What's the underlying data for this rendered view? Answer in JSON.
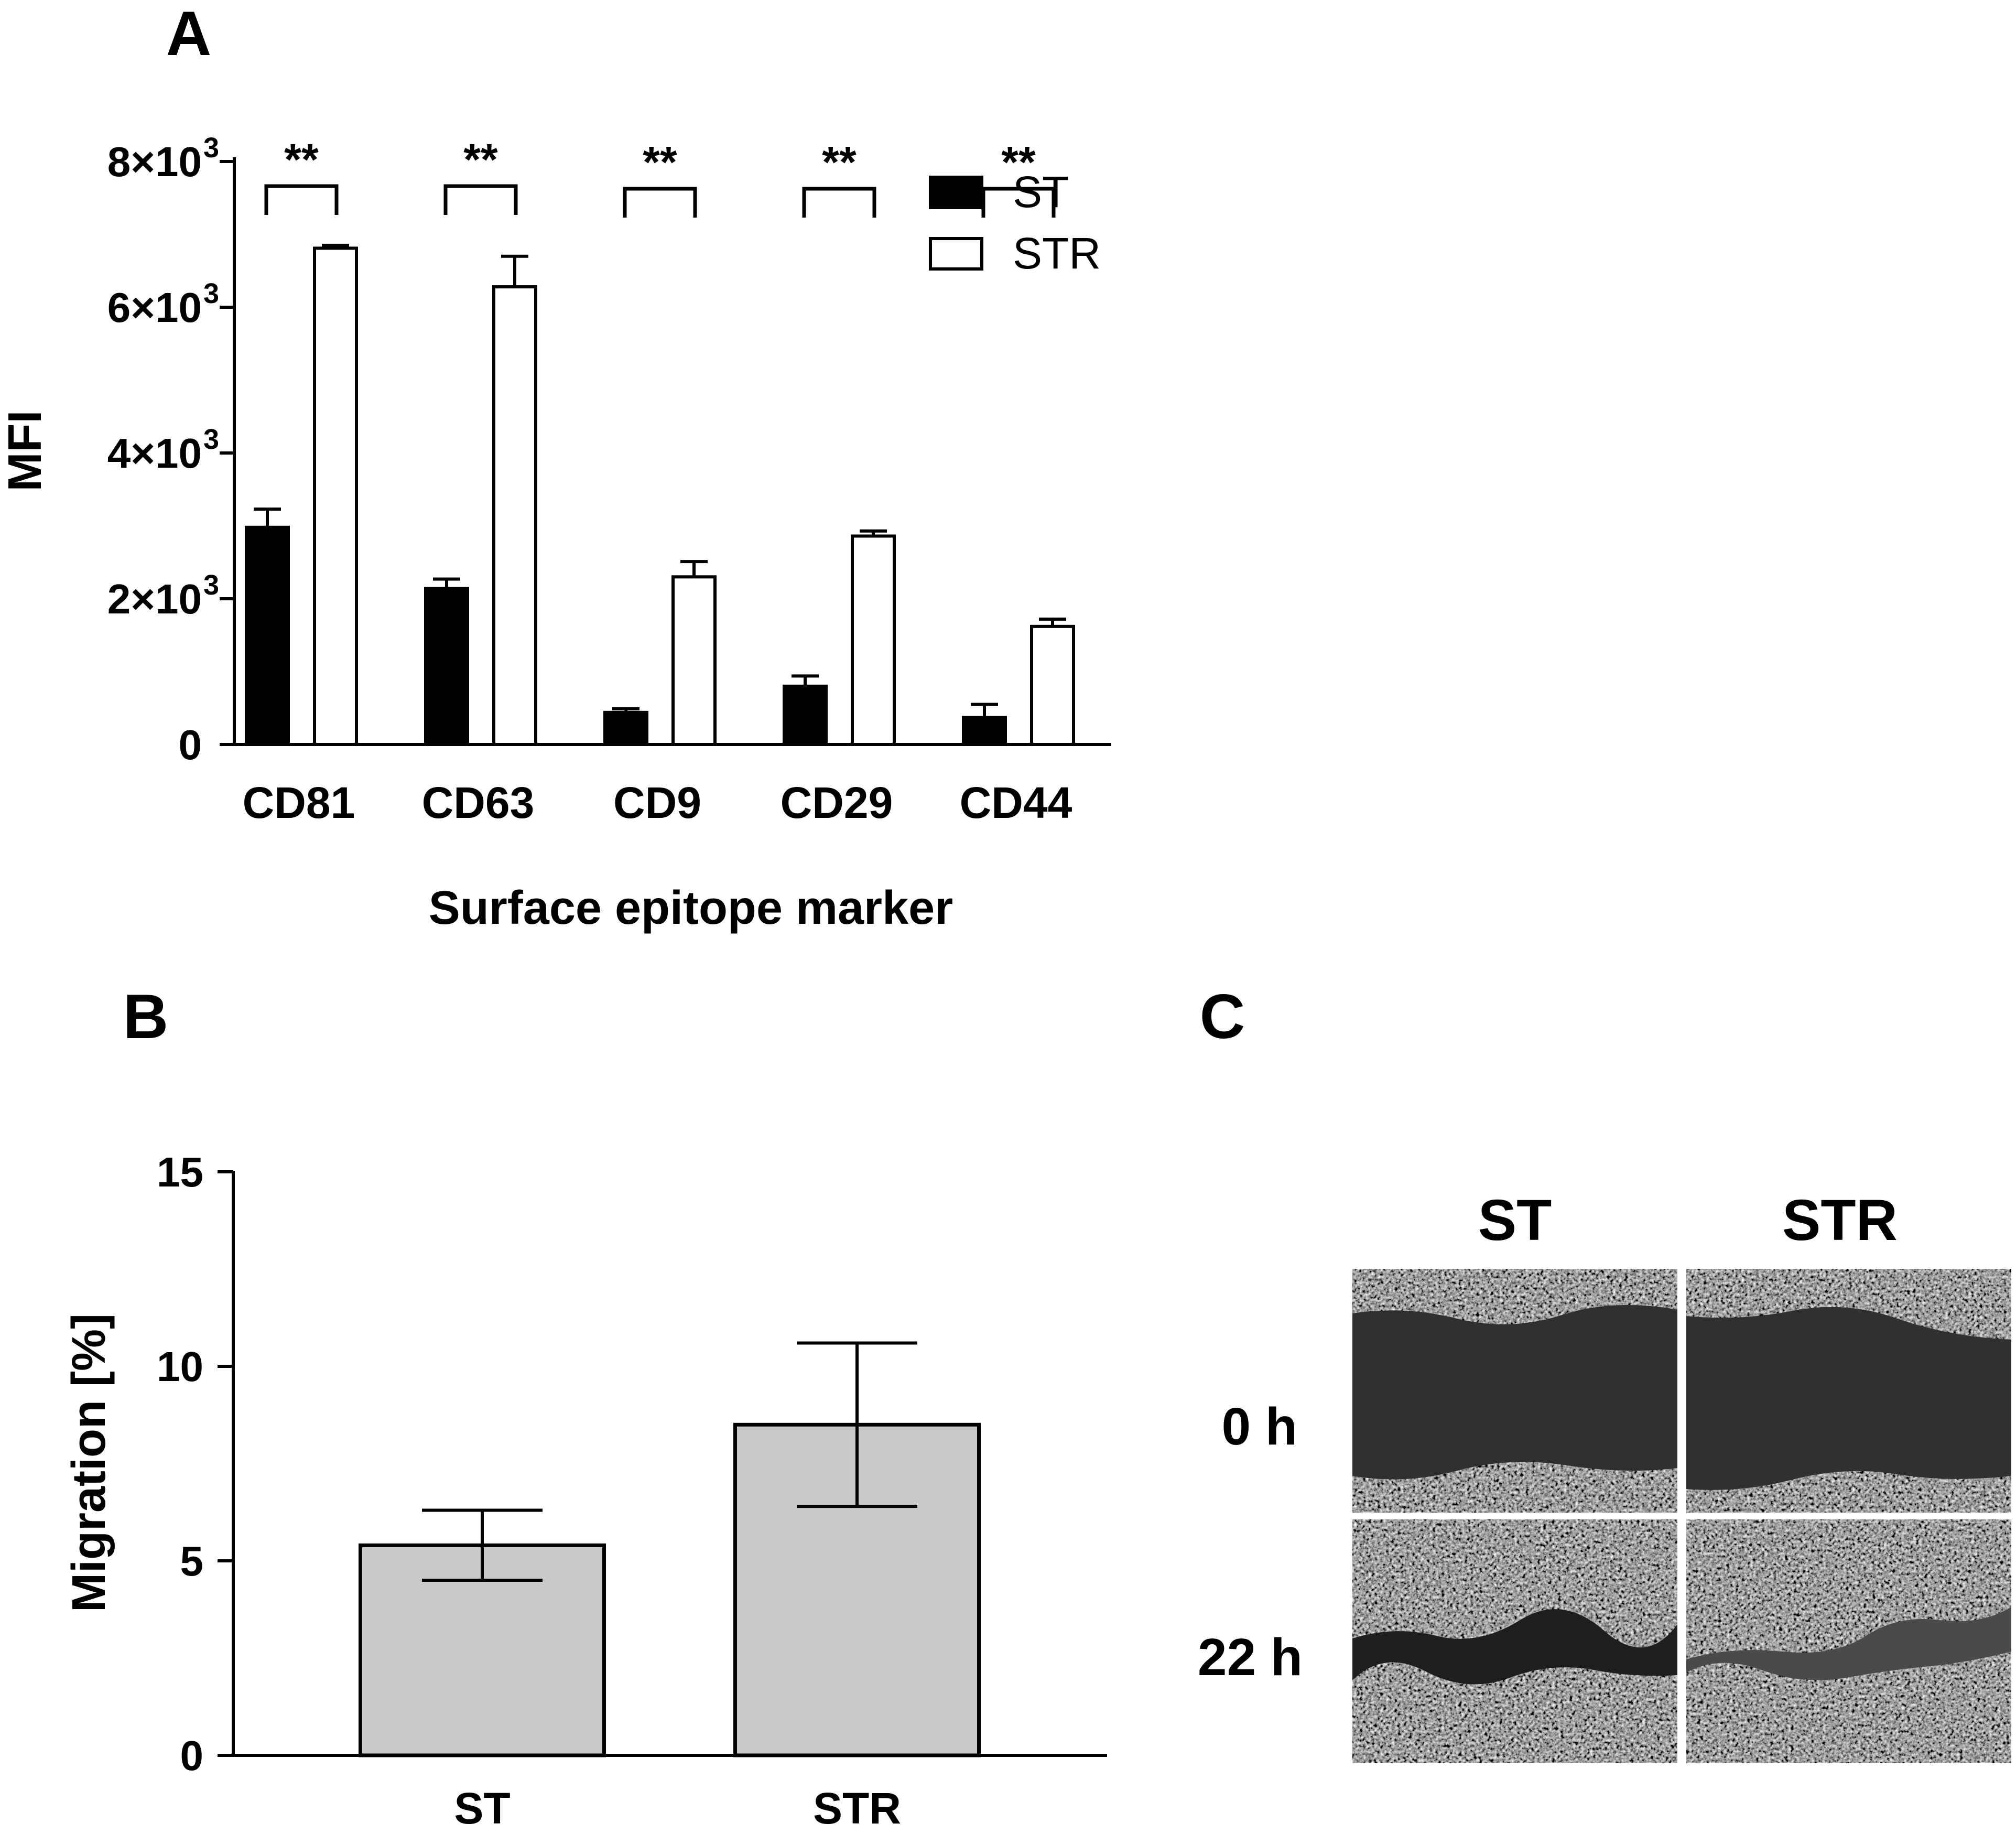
{
  "panels": {
    "A": "A",
    "B": "B",
    "C": "C"
  },
  "chart_data": [
    {
      "panel": "A",
      "type": "bar",
      "title": "",
      "xlabel": "Surface epitope marker",
      "ylabel": "MFI",
      "categories": [
        "CD81",
        "CD63",
        "CD9",
        "CD29",
        "CD44"
      ],
      "series": [
        {
          "name": "ST",
          "fill": "#000000",
          "values": [
            2980,
            2140,
            440,
            800,
            370
          ],
          "errors": [
            250,
            130,
            50,
            140,
            180
          ]
        },
        {
          "name": "STR",
          "fill": "#ffffff",
          "values": [
            6810,
            6280,
            2300,
            2860,
            1620
          ],
          "errors": [
            40,
            420,
            210,
            70,
            100
          ]
        }
      ],
      "significance": [
        "**",
        "**",
        "**",
        "**",
        "**"
      ],
      "ylim": [
        0,
        8000
      ],
      "yticks": [
        0,
        2000,
        4000,
        6000,
        8000
      ],
      "ytick_labels": [
        "0",
        "2×10",
        "4×10",
        "6×10",
        "8×10"
      ],
      "ytick_exponent": "3",
      "legend": {
        "position": "top-right",
        "entries": [
          "ST",
          "STR"
        ]
      }
    },
    {
      "panel": "B",
      "type": "bar",
      "title": "",
      "xlabel": "",
      "ylabel": "Migration [%]",
      "categories": [
        "ST",
        "STR"
      ],
      "values": [
        5.4,
        8.5
      ],
      "errors": [
        0.9,
        2.1
      ],
      "fill": "#c8c8c8",
      "ylim": [
        0,
        15
      ],
      "yticks": [
        0,
        5,
        10,
        15
      ],
      "ytick_labels": [
        "0",
        "5",
        "10",
        "15"
      ]
    }
  ],
  "micrographs": {
    "columns": [
      "ST",
      "STR"
    ],
    "rows": [
      "0 h",
      "22 h"
    ]
  }
}
